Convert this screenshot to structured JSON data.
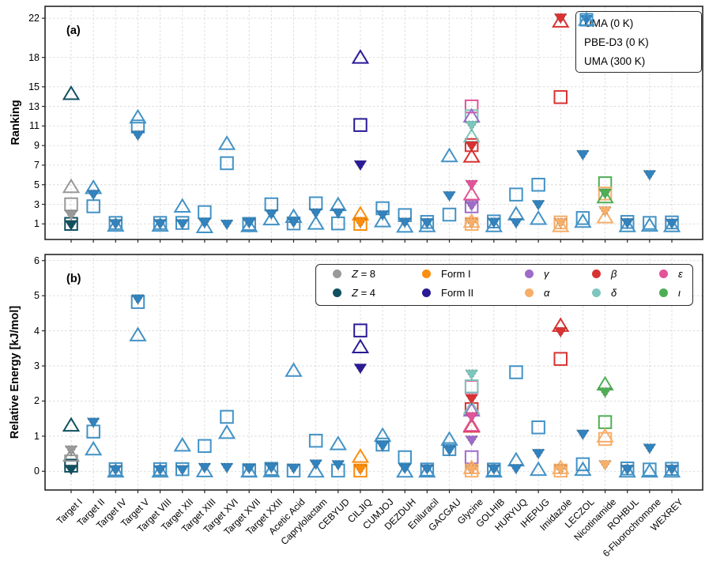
{
  "figure": {
    "panel_a_label": "(a)",
    "panel_b_label": "(b)"
  },
  "axes": {
    "a": {
      "ylabel": "Ranking",
      "yticks": [
        1,
        3,
        5,
        7,
        9,
        11,
        13,
        15,
        18,
        22
      ]
    },
    "b": {
      "ylabel": "Relative Energy [kJ/mol]",
      "yticks": [
        0,
        1,
        2,
        3,
        4,
        5,
        6
      ]
    }
  },
  "colors": {
    "blue": "#4292c6",
    "blue_fill": "#3182bd",
    "Z8": "#999999",
    "Z4": "#10505f",
    "FormI": "#fd8d0c",
    "FormII": "#2a1a96",
    "gamma": "#9e6bc9",
    "alpha": "#f7ae69",
    "beta": "#d93232",
    "delta": "#7dc6bd",
    "eps": "#e25399",
    "iota": "#4fae54",
    "spine": "#262626",
    "grid": "#d8d8d8"
  },
  "legend_series": [
    {
      "key": "uma0",
      "label": "UMA (0 K)",
      "marker": "triangle-down-filled"
    },
    {
      "key": "pbe",
      "label": "PBE-D3 (0 K)",
      "marker": "square-open"
    },
    {
      "key": "uma300",
      "label": "UMA (300 K)",
      "marker": "triangle-up-open"
    }
  ],
  "legend_forms": [
    [
      {
        "form": "Z8",
        "pre_italic": "Z",
        "rest": " = 8"
      },
      {
        "form": "FormI",
        "pre_italic": "",
        "rest": "Form I"
      },
      {
        "form": "gamma",
        "pre_italic": "γ",
        "rest": ""
      },
      {
        "form": "beta",
        "pre_italic": "β",
        "rest": ""
      },
      {
        "form": "eps",
        "pre_italic": "ε",
        "rest": ""
      }
    ],
    [
      {
        "form": "Z4",
        "pre_italic": "Z",
        "rest": " = 4"
      },
      {
        "form": "FormII",
        "pre_italic": "",
        "rest": "Form II"
      },
      {
        "form": "alpha",
        "pre_italic": "α",
        "rest": ""
      },
      {
        "form": "delta",
        "pre_italic": "δ",
        "rest": ""
      },
      {
        "form": "iota",
        "pre_italic": "ι",
        "rest": ""
      }
    ]
  ],
  "chart_data": {
    "type": "scatter",
    "categories": [
      "Target I",
      "Target II",
      "Target IV",
      "Target V",
      "Target VIII",
      "Target XII",
      "Target XIII",
      "Target XVI",
      "Target XVII",
      "Target XXII",
      "Acetic Acid",
      "Caprylolactam",
      "CEBYUD",
      "CILJIQ",
      "CUMJOJ",
      "DEZDUH",
      "Eniluracil",
      "GACGAU",
      "Glycine",
      "GOLHIB",
      "HURYUQ",
      "IHEPUG",
      "Imidazole",
      "LECZOL",
      "Nicotinamide",
      "ROHBUL",
      "6-Fluorochromone",
      "WEXREY"
    ],
    "panels": [
      {
        "id": "a",
        "ylabel": "Ranking",
        "yticks": [
          1,
          3,
          5,
          7,
          9,
          11,
          13,
          15,
          18,
          22
        ],
        "ylim": [
          -0.6,
          23.2
        ],
        "grid": true
      },
      {
        "id": "b",
        "ylabel": "Relative Energy [kJ/mol]",
        "yticks": [
          0,
          1,
          2,
          3,
          4,
          5,
          6
        ],
        "ylim": [
          -0.55,
          6.2
        ],
        "grid": true
      }
    ],
    "series_legend_position": "upper right of panel a",
    "forms_legend_position": "upper area of panel b",
    "points_format": "[category_index, form ('' = plain blue), series, ranking_panel_a, relative_energy_panel_b]",
    "points": [
      [
        0,
        "Z8",
        "pbe",
        3.0,
        0.28
      ],
      [
        0,
        "Z4",
        "pbe",
        1.0,
        0.16
      ],
      [
        0,
        "Z8",
        "uma300",
        4.8,
        0.45
      ],
      [
        0,
        "Z4",
        "uma300",
        14.3,
        1.31
      ],
      [
        0,
        "Z8",
        "uma0",
        1.9,
        0.6
      ],
      [
        0,
        "Z4",
        "uma0",
        0.9,
        0.05
      ],
      [
        1,
        "",
        "pbe",
        2.8,
        1.13
      ],
      [
        1,
        "",
        "uma300",
        4.7,
        0.63
      ],
      [
        1,
        "",
        "uma0",
        4.0,
        1.39
      ],
      [
        2,
        "",
        "pbe",
        1.1,
        0.06
      ],
      [
        2,
        "",
        "uma300",
        0.85,
        0.0
      ],
      [
        2,
        "",
        "uma0",
        1.0,
        0.04
      ],
      [
        3,
        "",
        "pbe",
        10.95,
        4.82
      ],
      [
        3,
        "",
        "uma300",
        11.9,
        3.88
      ],
      [
        3,
        "",
        "uma0",
        10.05,
        4.9
      ],
      [
        4,
        "",
        "pbe",
        1.1,
        0.06
      ],
      [
        4,
        "",
        "uma300",
        0.85,
        0.0
      ],
      [
        4,
        "",
        "uma0",
        1.0,
        0.04
      ],
      [
        5,
        "",
        "pbe",
        1.1,
        0.06
      ],
      [
        5,
        "",
        "uma300",
        2.8,
        0.74
      ],
      [
        5,
        "",
        "uma0",
        1.0,
        0.04
      ],
      [
        6,
        "",
        "pbe",
        2.2,
        0.72
      ],
      [
        6,
        "",
        "uma300",
        0.7,
        0.01
      ],
      [
        6,
        "",
        "uma0",
        1.1,
        0.1
      ],
      [
        7,
        "",
        "pbe",
        7.2,
        1.55
      ],
      [
        7,
        "",
        "uma300",
        9.2,
        1.1
      ],
      [
        7,
        "",
        "uma0",
        0.95,
        0.1
      ],
      [
        8,
        "",
        "pbe",
        1.0,
        0.03
      ],
      [
        8,
        "",
        "uma300",
        0.8,
        0.0
      ],
      [
        8,
        "",
        "uma0",
        1.1,
        0.08
      ],
      [
        9,
        "",
        "pbe",
        3.0,
        0.07
      ],
      [
        9,
        "",
        "uma300",
        1.5,
        0.01
      ],
      [
        9,
        "",
        "uma0",
        2.0,
        0.1
      ],
      [
        10,
        "",
        "pbe",
        1.05,
        0.02
      ],
      [
        10,
        "",
        "uma300",
        1.75,
        2.87
      ],
      [
        10,
        "",
        "uma0",
        1.15,
        0.08
      ],
      [
        11,
        "",
        "pbe",
        3.1,
        0.87
      ],
      [
        11,
        "",
        "uma300",
        1.05,
        0.0
      ],
      [
        11,
        "",
        "uma0",
        2.1,
        0.2
      ],
      [
        12,
        "",
        "pbe",
        1.05,
        0.02
      ],
      [
        12,
        "",
        "uma300",
        2.95,
        0.78
      ],
      [
        12,
        "",
        "uma0",
        2.1,
        0.18
      ],
      [
        13,
        "FormI",
        "pbe",
        1.0,
        0.02
      ],
      [
        13,
        "FormI",
        "uma300",
        2.0,
        0.42
      ],
      [
        13,
        "FormI",
        "uma0",
        1.1,
        0.05
      ],
      [
        13,
        "FormII",
        "pbe",
        11.1,
        4.01
      ],
      [
        13,
        "FormII",
        "uma300",
        18.0,
        3.54
      ],
      [
        13,
        "FormII",
        "uma0",
        7.0,
        2.93
      ],
      [
        14,
        "",
        "pbe",
        2.6,
        0.76
      ],
      [
        14,
        "",
        "uma300",
        1.3,
        1.02
      ],
      [
        14,
        "",
        "uma0",
        1.9,
        0.72
      ],
      [
        15,
        "",
        "pbe",
        1.9,
        0.4
      ],
      [
        15,
        "",
        "uma300",
        0.75,
        0.0
      ],
      [
        15,
        "",
        "uma0",
        1.15,
        0.08
      ],
      [
        16,
        "",
        "pbe",
        1.2,
        0.05
      ],
      [
        16,
        "",
        "uma300",
        0.8,
        0.0
      ],
      [
        16,
        "",
        "uma0",
        1.1,
        0.06
      ],
      [
        17,
        "",
        "pbe",
        1.95,
        0.63
      ],
      [
        17,
        "",
        "uma300",
        7.95,
        0.91
      ],
      [
        17,
        "",
        "uma0",
        3.85,
        0.6
      ],
      [
        18,
        "eps",
        "pbe",
        13.0,
        2.4
      ],
      [
        18,
        "delta",
        "pbe",
        12.0,
        2.42
      ],
      [
        18,
        "beta",
        "pbe",
        9.05,
        1.77
      ],
      [
        18,
        "gamma",
        "pbe",
        2.8,
        0.4
      ],
      [
        18,
        "alpha",
        "pbe",
        1.0,
        0.02
      ],
      [
        18,
        "gamma",
        "uma300",
        12.0,
        1.74
      ],
      [
        18,
        "delta",
        "uma300",
        9.95,
        1.8
      ],
      [
        18,
        "beta",
        "uma300",
        7.9,
        1.28
      ],
      [
        18,
        "eps",
        "uma300",
        4.05,
        1.31
      ],
      [
        18,
        "alpha",
        "uma300",
        1.25,
        0.1
      ],
      [
        18,
        "delta",
        "uma0",
        11.05,
        2.76
      ],
      [
        18,
        "beta",
        "uma0",
        8.95,
        2.06
      ],
      [
        18,
        "eps",
        "uma0",
        5.0,
        1.55
      ],
      [
        18,
        "gamma",
        "uma0",
        2.85,
        0.88
      ],
      [
        18,
        "alpha",
        "uma0",
        1.1,
        0.04
      ],
      [
        19,
        "",
        "pbe",
        1.25,
        0.05
      ],
      [
        19,
        "",
        "uma300",
        0.8,
        0.0
      ],
      [
        19,
        "",
        "uma0",
        1.15,
        0.06
      ],
      [
        20,
        "",
        "pbe",
        4.0,
        2.82
      ],
      [
        20,
        "",
        "uma300",
        2.0,
        0.32
      ],
      [
        20,
        "",
        "uma0",
        1.1,
        0.07
      ],
      [
        21,
        "",
        "pbe",
        5.0,
        1.25
      ],
      [
        21,
        "",
        "uma300",
        1.55,
        0.05
      ],
      [
        21,
        "",
        "uma0",
        2.95,
        0.5
      ],
      [
        22,
        "beta",
        "pbe",
        13.95,
        3.2
      ],
      [
        22,
        "alpha",
        "pbe",
        1.15,
        0.02
      ],
      [
        22,
        "beta",
        "uma300",
        21.7,
        4.15
      ],
      [
        22,
        "alpha",
        "uma300",
        0.8,
        0.1
      ],
      [
        22,
        "beta",
        "uma0",
        22.0,
        3.97
      ],
      [
        22,
        "alpha",
        "uma0",
        1.1,
        0.05
      ],
      [
        23,
        "",
        "pbe",
        1.6,
        0.2
      ],
      [
        23,
        "",
        "uma300",
        1.25,
        0.05
      ],
      [
        23,
        "",
        "uma0",
        8.05,
        1.05
      ],
      [
        24,
        "iota",
        "pbe",
        5.15,
        1.4
      ],
      [
        24,
        "alpha",
        "pbe",
        4.1,
        0.92
      ],
      [
        24,
        "iota",
        "uma300",
        3.75,
        2.48
      ],
      [
        24,
        "alpha",
        "uma300",
        1.7,
        1.0
      ],
      [
        24,
        "iota",
        "uma0",
        4.1,
        2.25
      ],
      [
        24,
        "alpha",
        "uma0",
        2.3,
        0.18
      ],
      [
        25,
        "",
        "pbe",
        1.2,
        0.08
      ],
      [
        25,
        "",
        "uma300",
        0.8,
        0.0
      ],
      [
        25,
        "",
        "uma0",
        1.1,
        0.05
      ],
      [
        26,
        "",
        "pbe",
        1.1,
        0.05
      ],
      [
        26,
        "",
        "uma300",
        0.85,
        0.0
      ],
      [
        26,
        "",
        "uma0",
        6.0,
        0.65
      ],
      [
        27,
        "",
        "pbe",
        1.15,
        0.07
      ],
      [
        27,
        "",
        "uma300",
        0.8,
        0.0
      ],
      [
        27,
        "",
        "uma0",
        1.05,
        0.05
      ]
    ]
  }
}
